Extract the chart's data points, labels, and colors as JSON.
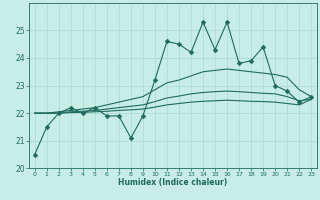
{
  "xlabel": "Humidex (Indice chaleur)",
  "bg_color": "#c8ece6",
  "line_color": "#1e6b5e",
  "x_values": [
    0,
    1,
    2,
    3,
    4,
    5,
    6,
    7,
    8,
    9,
    10,
    11,
    12,
    13,
    14,
    15,
    16,
    17,
    18,
    19,
    20,
    21,
    22,
    23
  ],
  "series_main": [
    20.5,
    21.5,
    22.0,
    22.2,
    22.0,
    22.2,
    21.9,
    21.9,
    21.1,
    21.9,
    23.2,
    24.6,
    24.5,
    24.2,
    25.3,
    24.3,
    25.3,
    23.8,
    23.9,
    24.4,
    23.0,
    22.8,
    22.4,
    22.6
  ],
  "series_upper": [
    22.0,
    22.0,
    22.05,
    22.1,
    22.15,
    22.2,
    22.3,
    22.4,
    22.5,
    22.6,
    22.85,
    23.1,
    23.2,
    23.35,
    23.5,
    23.55,
    23.6,
    23.55,
    23.5,
    23.45,
    23.4,
    23.3,
    22.85,
    22.6
  ],
  "series_mid": [
    22.0,
    22.0,
    22.0,
    22.05,
    22.07,
    22.1,
    22.15,
    22.2,
    22.25,
    22.3,
    22.42,
    22.55,
    22.62,
    22.7,
    22.75,
    22.78,
    22.8,
    22.78,
    22.75,
    22.72,
    22.7,
    22.6,
    22.45,
    22.5
  ],
  "series_lower": [
    22.0,
    22.0,
    22.0,
    22.02,
    22.03,
    22.05,
    22.07,
    22.1,
    22.12,
    22.15,
    22.22,
    22.3,
    22.35,
    22.4,
    22.43,
    22.45,
    22.47,
    22.45,
    22.43,
    22.42,
    22.4,
    22.35,
    22.3,
    22.5
  ],
  "ylim": [
    20,
    26
  ],
  "yticks": [
    20,
    21,
    22,
    23,
    24,
    25
  ],
  "xtick_labels": [
    "0",
    "1",
    "2",
    "3",
    "4",
    "5",
    "6",
    "7",
    "8",
    "9",
    "10",
    "11",
    "12",
    "13",
    "14",
    "15",
    "16",
    "17",
    "18",
    "19",
    "20",
    "21",
    "22",
    "23"
  ],
  "grid_color": "#a8d8d0",
  "markersize": 2.5,
  "linewidth": 0.8
}
